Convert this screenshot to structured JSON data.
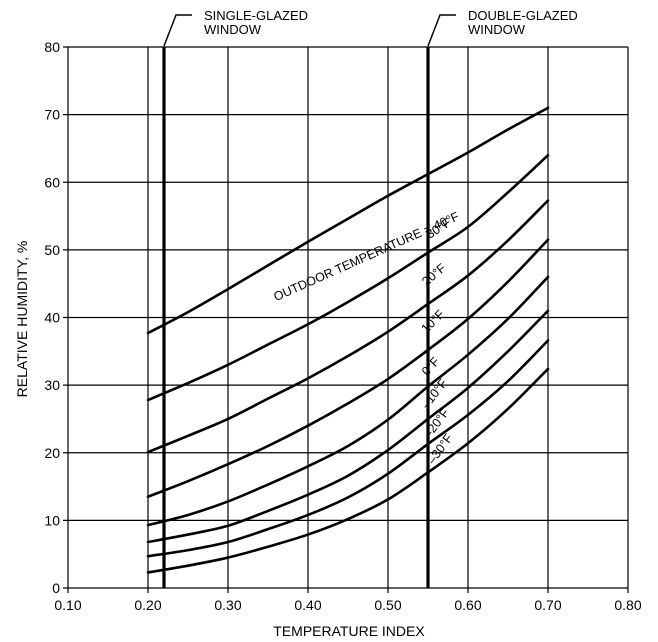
{
  "chart_data": {
    "type": "line",
    "xlabel": "TEMPERATURE INDEX",
    "ylabel": "RELATIVE HUMIDITY, %",
    "xlim": [
      0.1,
      0.8
    ],
    "ylim": [
      0,
      80
    ],
    "xticks": [
      "0.10",
      "0.20",
      "0.30",
      "0.40",
      "0.50",
      "0.60",
      "0.70",
      "0.80"
    ],
    "yticks": [
      "0",
      "10",
      "20",
      "30",
      "40",
      "50",
      "60",
      "70",
      "80"
    ],
    "grid": true,
    "series": [
      {
        "name": "OUTDOOR TEMPERATURE  =  40°F",
        "x": [
          0.2,
          0.25,
          0.3,
          0.35,
          0.4,
          0.45,
          0.5,
          0.55,
          0.6,
          0.65,
          0.7
        ],
        "y": [
          37.7,
          40.8,
          44.2,
          47.7,
          51.2,
          54.6,
          58.0,
          61.2,
          64.4,
          67.8,
          71.0
        ]
      },
      {
        "name": "30°F",
        "x": [
          0.2,
          0.25,
          0.3,
          0.35,
          0.4,
          0.45,
          0.5,
          0.55,
          0.6,
          0.65,
          0.7
        ],
        "y": [
          27.8,
          30.3,
          33.0,
          36.0,
          39.0,
          42.3,
          45.8,
          49.6,
          53.4,
          58.5,
          64.0
        ]
      },
      {
        "name": "20°F",
        "x": [
          0.2,
          0.25,
          0.3,
          0.35,
          0.4,
          0.45,
          0.5,
          0.55,
          0.6,
          0.65,
          0.7
        ],
        "y": [
          20.1,
          22.5,
          25.0,
          28.0,
          31.0,
          34.3,
          37.9,
          42.0,
          46.2,
          51.4,
          57.3
        ]
      },
      {
        "name": "10°F",
        "x": [
          0.2,
          0.25,
          0.3,
          0.35,
          0.4,
          0.45,
          0.5,
          0.55,
          0.6,
          0.65,
          0.7
        ],
        "y": [
          13.5,
          15.8,
          18.3,
          21.0,
          24.0,
          27.3,
          30.9,
          35.2,
          39.8,
          45.3,
          51.5
        ]
      },
      {
        "name": "0°F",
        "x": [
          0.2,
          0.25,
          0.3,
          0.35,
          0.4,
          0.45,
          0.5,
          0.55,
          0.6,
          0.65,
          0.7
        ],
        "y": [
          9.3,
          10.8,
          12.8,
          15.3,
          18.0,
          21.0,
          24.9,
          29.8,
          34.5,
          39.8,
          46.0
        ]
      },
      {
        "name": "–10°F",
        "x": [
          0.2,
          0.25,
          0.3,
          0.35,
          0.4,
          0.45,
          0.5,
          0.55,
          0.6,
          0.65,
          0.7
        ],
        "y": [
          6.8,
          7.9,
          9.2,
          11.4,
          13.8,
          16.6,
          20.4,
          25.0,
          29.6,
          35.0,
          41.0
        ]
      },
      {
        "name": "–20°F",
        "x": [
          0.2,
          0.25,
          0.3,
          0.35,
          0.4,
          0.45,
          0.5,
          0.55,
          0.6,
          0.65,
          0.7
        ],
        "y": [
          4.7,
          5.6,
          6.8,
          8.7,
          10.8,
          13.4,
          16.9,
          21.3,
          25.6,
          30.6,
          36.6
        ]
      },
      {
        "name": "–30°F",
        "x": [
          0.2,
          0.25,
          0.3,
          0.35,
          0.4,
          0.45,
          0.5,
          0.55,
          0.6,
          0.65,
          0.7
        ],
        "y": [
          2.3,
          3.3,
          4.5,
          6.1,
          7.9,
          10.2,
          13.1,
          17.1,
          21.4,
          26.5,
          32.4
        ]
      }
    ],
    "reference_lines": [
      {
        "x": 0.22,
        "label": "SINGLE-GLAZED WINDOW",
        "label_lines": [
          "SINGLE-GLAZED",
          "WINDOW"
        ]
      },
      {
        "x": 0.55,
        "label": "DOUBLE-GLAZED WINDOW",
        "label_lines": [
          "DOUBLE-GLAZED",
          "WINDOW"
        ]
      }
    ],
    "colors": {
      "line": "#000000",
      "grid": "#000000",
      "background": "#ffffff"
    }
  }
}
